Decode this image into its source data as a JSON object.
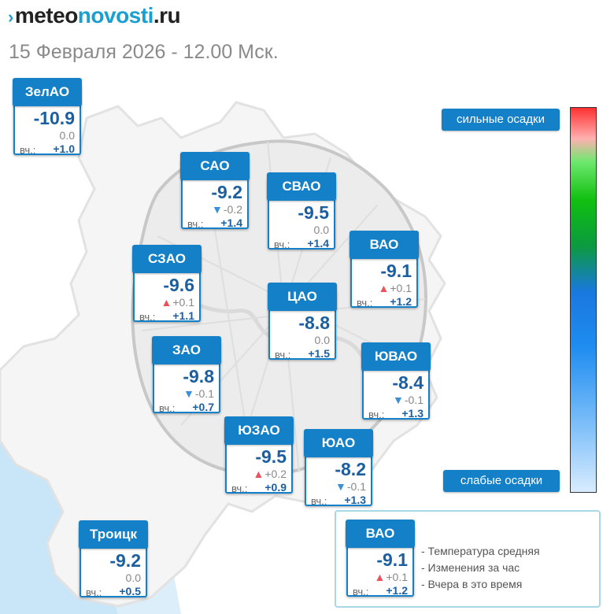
{
  "header": {
    "logo_mark": "›",
    "logo_part1": "meteo",
    "logo_part2": "novosti",
    "logo_part3": ".ru",
    "date": "15 Февраля 2026 - 12.00 Мск."
  },
  "scale": {
    "top_label": "сильные осадки",
    "bottom_label": "слабые осадки"
  },
  "districts": [
    {
      "key": "zelao",
      "name": "ЗелАО",
      "temp": "-10.9",
      "change": "0.0",
      "trend": "none",
      "yesterday_label": "вч.:",
      "yesterday": "+1.0"
    },
    {
      "key": "sao",
      "name": "САО",
      "temp": "-9.2",
      "change": "-0.2",
      "trend": "down",
      "yesterday_label": "вч.:",
      "yesterday": "+1.4"
    },
    {
      "key": "svao",
      "name": "СВАО",
      "temp": "-9.5",
      "change": "0.0",
      "trend": "none",
      "yesterday_label": "вч.:",
      "yesterday": "+1.4"
    },
    {
      "key": "vao",
      "name": "ВАО",
      "temp": "-9.1",
      "change": "+0.1",
      "trend": "up",
      "yesterday_label": "вч.:",
      "yesterday": "+1.2"
    },
    {
      "key": "szao",
      "name": "СЗАО",
      "temp": "-9.6",
      "change": "+0.1",
      "trend": "up",
      "yesterday_label": "вч.:",
      "yesterday": "+1.1"
    },
    {
      "key": "cao",
      "name": "ЦАО",
      "temp": "-8.8",
      "change": "0.0",
      "trend": "none",
      "yesterday_label": "вч.:",
      "yesterday": "+1.5"
    },
    {
      "key": "zao",
      "name": "ЗАО",
      "temp": "-9.8",
      "change": "-0.1",
      "trend": "down",
      "yesterday_label": "вч.:",
      "yesterday": "+0.7"
    },
    {
      "key": "yuvao",
      "name": "ЮВАО",
      "temp": "-8.4",
      "change": "-0.1",
      "trend": "down",
      "yesterday_label": "вч.:",
      "yesterday": "+1.3"
    },
    {
      "key": "yuzao",
      "name": "ЮЗАО",
      "temp": "-9.5",
      "change": "+0.2",
      "trend": "up",
      "yesterday_label": "вч.:",
      "yesterday": "+0.9"
    },
    {
      "key": "yuao",
      "name": "ЮАО",
      "temp": "-8.2",
      "change": "-0.1",
      "trend": "down",
      "yesterday_label": "вч.:",
      "yesterday": "+1.3"
    },
    {
      "key": "troitsk",
      "name": "Троицк",
      "temp": "-9.2",
      "change": "0.0",
      "trend": "none",
      "yesterday_label": "вч.:",
      "yesterday": "+0.5"
    }
  ],
  "legend": {
    "sample": {
      "name": "ВАО",
      "temp": "-9.1",
      "change": "+0.1",
      "trend": "up",
      "yesterday_label": "вч.:",
      "yesterday": "+1.2"
    },
    "lines": [
      "- Температура средняя",
      "- Изменения за час",
      "- Вчера в это время"
    ]
  },
  "colors": {
    "card_header": "#1380c8",
    "temp_text": "#1c5fa0",
    "up_triangle": "#e8535c",
    "down_triangle": "#3a8fd8",
    "legend_border": "#a8d8e8"
  },
  "icons": {
    "up": "▲",
    "down": "▼"
  }
}
